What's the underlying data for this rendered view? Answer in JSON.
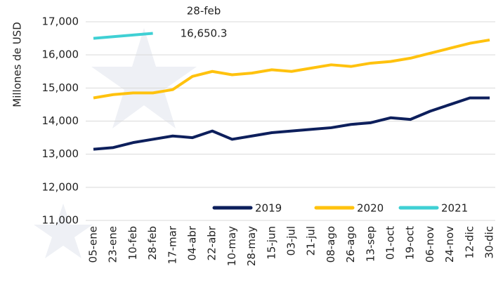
{
  "chart_data": {
    "type": "line",
    "y_label": "Millones de USD",
    "categories": [
      "05-ene",
      "23-ene",
      "10-feb",
      "28-feb",
      "17-mar",
      "04-abr",
      "22-abr",
      "10-may",
      "28-may",
      "15-jun",
      "03-jul",
      "21-jul",
      "08-ago",
      "26-ago",
      "13-sep",
      "01-oct",
      "19-oct",
      "06-nov",
      "24-nov",
      "12-dic",
      "30-dic"
    ],
    "series": [
      {
        "name": "2019",
        "color": "#0d1f5c",
        "values": [
          13150,
          13200,
          13350,
          13450,
          13550,
          13500,
          13700,
          13450,
          13550,
          13650,
          13700,
          13750,
          13800,
          13900,
          13950,
          14100,
          14050,
          14300,
          14500,
          14700,
          14700
        ]
      },
      {
        "name": "2020",
        "color": "#ffc20e",
        "values": [
          14700,
          14800,
          14850,
          14850,
          14950,
          15350,
          15500,
          15400,
          15450,
          15550,
          15500,
          15600,
          15700,
          15650,
          15750,
          15800,
          15900,
          16050,
          16200,
          16350,
          16450
        ]
      },
      {
        "name": "2021",
        "color": "#3fd0d4",
        "values": [
          16500,
          16550,
          16600,
          16650.3,
          null,
          null,
          null,
          null,
          null,
          null,
          null,
          null,
          null,
          null,
          null,
          null,
          null,
          null,
          null,
          null,
          null
        ]
      }
    ],
    "annotations": [
      "28-feb",
      "16,650.3"
    ],
    "ylim": [
      11000,
      17000
    ],
    "yticks": [
      {
        "value": 11000,
        "label": "11,000"
      },
      {
        "value": 12000,
        "label": "12,000"
      },
      {
        "value": 13000,
        "label": "13,000"
      },
      {
        "value": 14000,
        "label": "14,000"
      },
      {
        "value": 15000,
        "label": "15,000"
      },
      {
        "value": 16000,
        "label": "16,000"
      },
      {
        "value": 17000,
        "label": "17,000"
      }
    ],
    "grid": true,
    "legend": "bottom-right"
  }
}
